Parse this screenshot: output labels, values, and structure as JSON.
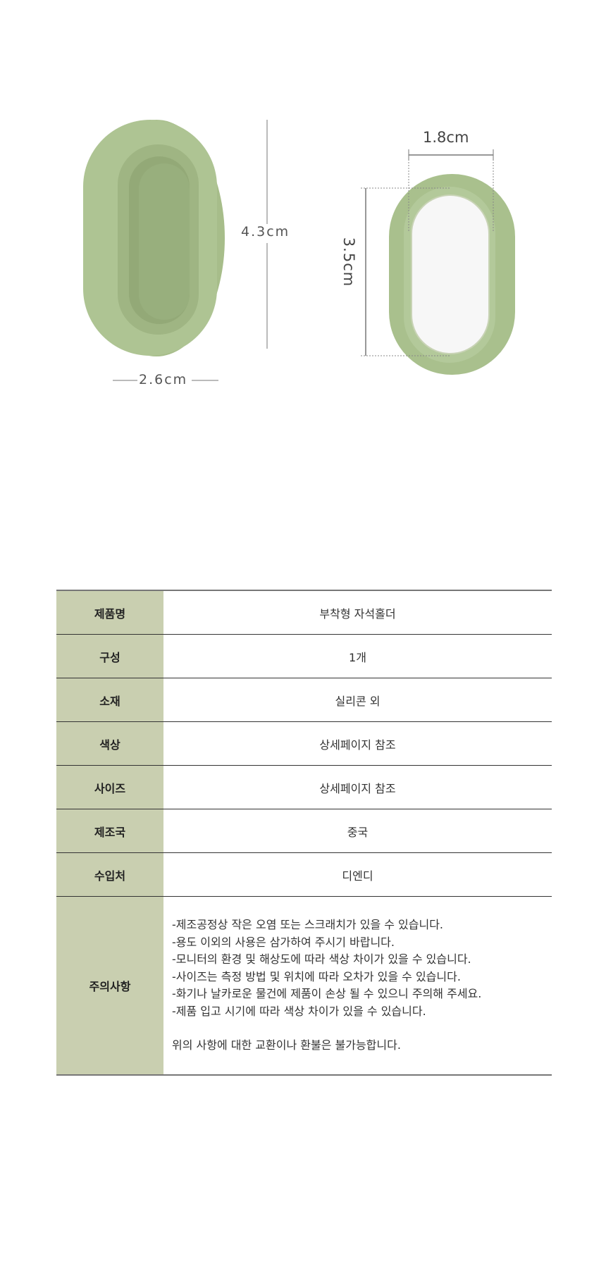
{
  "dimensions": {
    "height_left": "4.3cm",
    "width_left": "2.6cm",
    "width_right": "1.8cm",
    "height_right": "3.5cm"
  },
  "colors": {
    "product_green": "#a9c08d",
    "label_bg": "#c9cfb0"
  },
  "spec_table": {
    "rows": [
      {
        "label": "제품명",
        "value": "부착형 자석홀더"
      },
      {
        "label": "구성",
        "value": "1개"
      },
      {
        "label": "소재",
        "value": "실리콘 외"
      },
      {
        "label": "색상",
        "value": "상세페이지 참조"
      },
      {
        "label": "사이즈",
        "value": "상세페이지 참조"
      },
      {
        "label": "제조국",
        "value": "중국"
      },
      {
        "label": "수입처",
        "value": "디엔디"
      }
    ],
    "notes": {
      "label": "주의사항",
      "lines": [
        "-제조공정상 작은 오염 또는 스크래치가 있을 수 있습니다.",
        "-용도 이외의 사용은 삼가하여 주시기 바랍니다.",
        "-모니터의 환경 및 해상도에 따라 색상 차이가 있을 수 있습니다.",
        "-사이즈는 측정 방법 및 위치에 따라 오차가 있을 수 있습니다.",
        "-화기나 날카로운 물건에 제품이 손상 될 수 있으니 주의해 주세요.",
        "-제품 입고 시기에 따라 색상 차이가 있을 수 있습니다."
      ],
      "footer": "위의 사항에 대한 교환이나 환불은 불가능합니다."
    }
  }
}
